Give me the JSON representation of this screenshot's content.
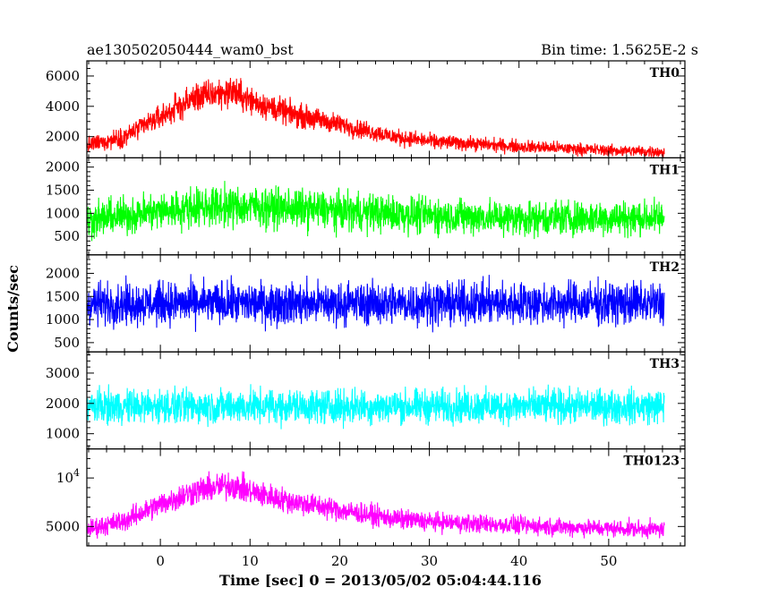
{
  "title_left": "ae130502050444_wam0_bst",
  "title_right": "Bin time: 1.5625E-2 s",
  "ylabel": "Counts/sec",
  "xlabel": "Time [sec] 0 = 2013/05/02 05:04:44.116",
  "chart_data": {
    "type": "line",
    "x_range": [
      -8.2,
      56.2
    ],
    "xlim": [
      -8.2,
      58.5
    ],
    "x_ticks": [
      0,
      10,
      20,
      30,
      40,
      50
    ],
    "x_tick_labels": [
      "0",
      "10",
      "20",
      "30",
      "40",
      "50"
    ],
    "x_minor_step": 2,
    "panels": [
      {
        "name": "TH0",
        "color": "#ff0000",
        "ylim": [
          600,
          7000
        ],
        "y_ticks": [
          2000,
          4000,
          6000
        ],
        "y_tick_labels": [
          "2000",
          "4000",
          "6000"
        ],
        "y_minor_step": 500,
        "envelope": {
          "x": [
            -8.2,
            -4,
            0,
            4,
            8,
            10,
            14,
            20,
            26,
            30,
            40,
            50,
            56.2
          ],
          "mean": [
            1400,
            2000,
            3300,
            4600,
            5000,
            4400,
            3600,
            2800,
            2000,
            1700,
            1350,
            1100,
            1000
          ],
          "noise": [
            500,
            600,
            750,
            900,
            950,
            850,
            750,
            600,
            500,
            450,
            400,
            350,
            350
          ]
        }
      },
      {
        "name": "TH1",
        "color": "#00ff00",
        "ylim": [
          100,
          2200
        ],
        "y_ticks": [
          500,
          1000,
          1500,
          2000
        ],
        "y_tick_labels": [
          "500",
          "1000",
          "1500",
          "2000"
        ],
        "y_minor_step": 100,
        "envelope": {
          "x": [
            -8.2,
            0,
            5,
            10,
            20,
            30,
            40,
            56.2
          ],
          "mean": [
            850,
            1050,
            1150,
            1150,
            1050,
            950,
            900,
            900
          ],
          "noise": [
            350,
            380,
            400,
            400,
            380,
            360,
            350,
            350
          ]
        }
      },
      {
        "name": "TH2",
        "color": "#0000ff",
        "ylim": [
          300,
          2400
        ],
        "y_ticks": [
          500,
          1000,
          1500,
          2000
        ],
        "y_tick_labels": [
          "500",
          "1000",
          "1500",
          "2000"
        ],
        "y_minor_step": 100,
        "envelope": {
          "x": [
            -8.2,
            56.2
          ],
          "mean": [
            1350,
            1350
          ],
          "noise": [
            420,
            420
          ]
        }
      },
      {
        "name": "TH3",
        "color": "#00ffff",
        "ylim": [
          500,
          3700
        ],
        "y_ticks": [
          1000,
          2000,
          3000
        ],
        "y_tick_labels": [
          "1000",
          "2000",
          "3000"
        ],
        "y_minor_step": 200,
        "envelope": {
          "x": [
            -8.2,
            56.2
          ],
          "mean": [
            1900,
            1900
          ],
          "noise": [
            520,
            520
          ]
        }
      },
      {
        "name": "TH0123",
        "color": "#ff00ff",
        "ylim": [
          3000,
          13000
        ],
        "y_ticks": [
          5000,
          10000
        ],
        "y_tick_labels": [
          "5000",
          "10^4"
        ],
        "y_minor_step": 1000,
        "envelope": {
          "x": [
            -8.2,
            -4,
            0,
            4,
            8,
            10,
            14,
            20,
            26,
            30,
            40,
            50,
            56.2
          ],
          "mean": [
            4700,
            5600,
            7300,
            8700,
            9300,
            8600,
            7700,
            6700,
            5800,
            5500,
            5100,
            4800,
            4700
          ],
          "noise": [
            900,
            1000,
            1150,
            1300,
            1350,
            1250,
            1150,
            1050,
            950,
            900,
            850,
            800,
            800
          ]
        }
      }
    ]
  }
}
